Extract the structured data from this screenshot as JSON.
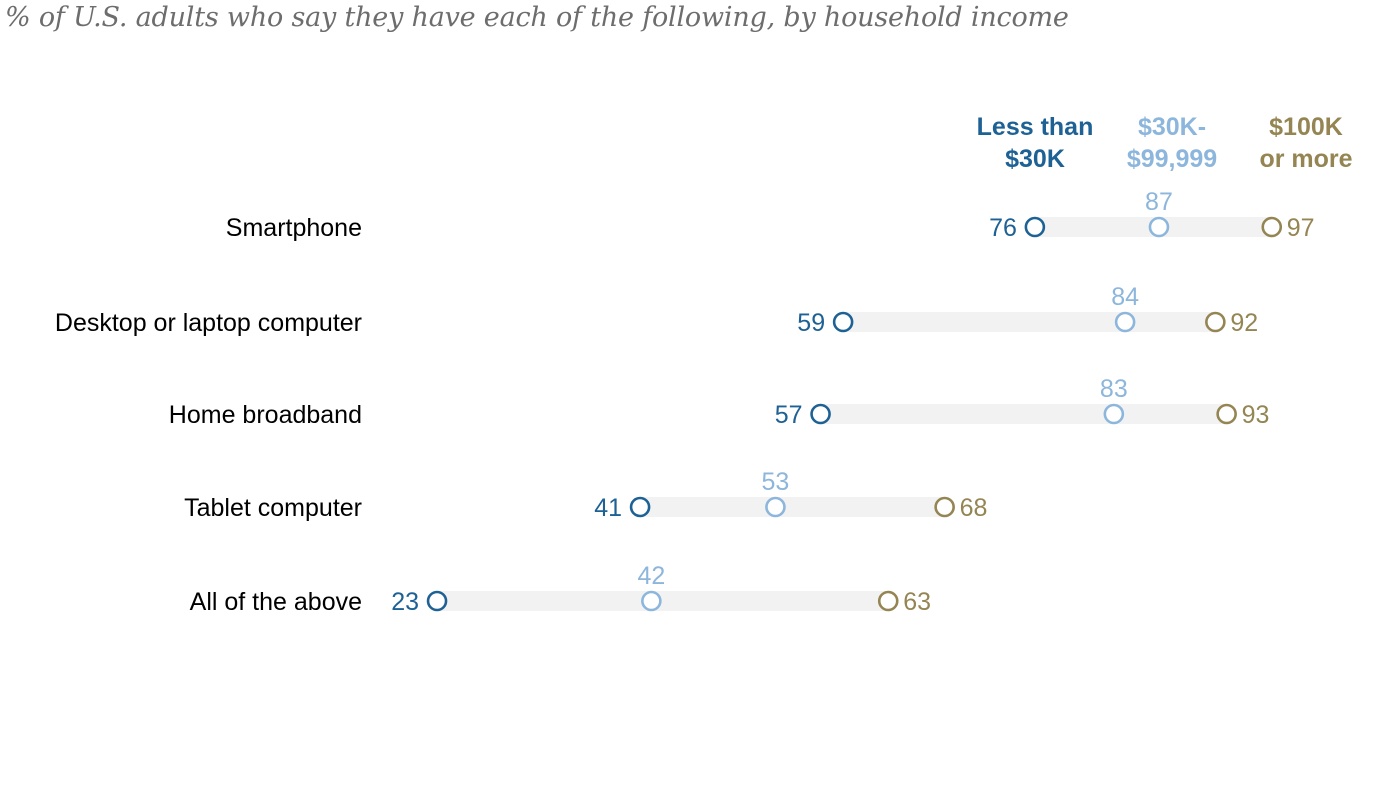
{
  "subtitle": "% of U.S. adults who say they have each of the following, by household income",
  "colors": {
    "low": "#1e6194",
    "mid": "#8db6dc",
    "high": "#948553",
    "track": "#f2f2f2",
    "label": "#000000"
  },
  "chart_data": {
    "type": "dot",
    "categories": [
      "Smartphone",
      "Desktop or laptop computer",
      "Home broadband",
      "Tablet computer",
      "All of the above"
    ],
    "series": [
      {
        "key": "low",
        "name_lines": [
          "Less than",
          "$30K"
        ],
        "values": [
          76,
          59,
          57,
          41,
          23
        ]
      },
      {
        "key": "mid",
        "name_lines": [
          "$30K-",
          "$99,999"
        ],
        "values": [
          87,
          84,
          83,
          53,
          42
        ]
      },
      {
        "key": "high",
        "name_lines": [
          "$100K",
          "or more"
        ],
        "values": [
          97,
          92,
          93,
          68,
          63
        ]
      }
    ],
    "xlim": [
      0,
      100
    ],
    "grid": false,
    "legend": "top-right"
  }
}
